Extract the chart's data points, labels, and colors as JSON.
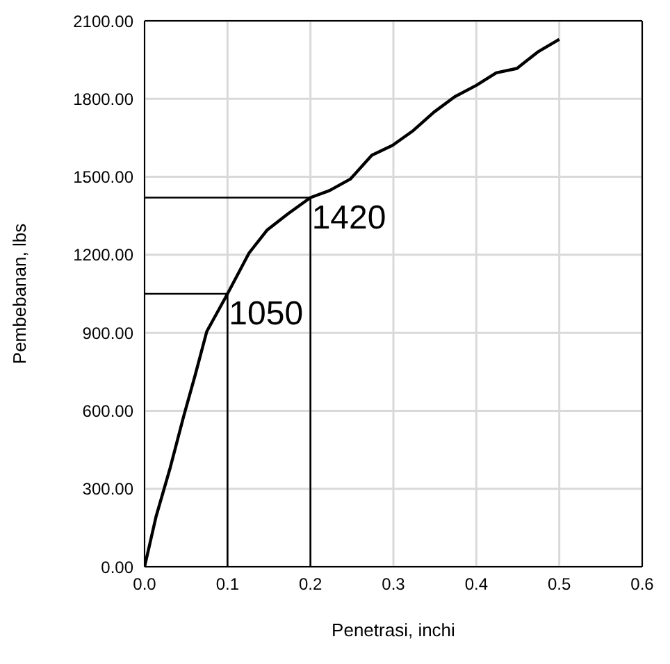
{
  "chart_data": {
    "type": "line",
    "xlabel": "Penetrasi, inchi",
    "ylabel": "Pembebanan, lbs",
    "series": [
      {
        "color": "#000000",
        "x": [
          0,
          0.014,
          0.031,
          0.047,
          0.061,
          0.075,
          0.1,
          0.126,
          0.148,
          0.173,
          0.2,
          0.223,
          0.248,
          0.274,
          0.299,
          0.324,
          0.349,
          0.374,
          0.4,
          0.424,
          0.449,
          0.474,
          0.5
        ],
        "values": [
          0,
          195,
          382,
          577,
          737,
          905,
          1050,
          1207,
          1296,
          1358,
          1420,
          1447,
          1491,
          1583,
          1621,
          1678,
          1749,
          1808,
          1852,
          1900,
          1917,
          1980,
          2029
        ]
      }
    ],
    "annotations": [
      {
        "text": "1050",
        "x": 0.1,
        "y": 1050
      },
      {
        "text": "1420",
        "x": 0.2,
        "y": 1420
      }
    ],
    "xlim": [
      0,
      0.6
    ],
    "xticks": [
      {
        "value": 0,
        "label": "0.0"
      },
      {
        "value": 0.1,
        "label": "0.1"
      },
      {
        "value": 0.2,
        "label": "0.2"
      },
      {
        "value": 0.3,
        "label": "0.3"
      },
      {
        "value": 0.4,
        "label": "0.4"
      },
      {
        "value": 0.5,
        "label": "0.5"
      },
      {
        "value": 0.6,
        "label": "0.6"
      }
    ],
    "ylim": [
      0,
      2100
    ],
    "yticks": [
      {
        "value": 0,
        "label": "0.00"
      },
      {
        "value": 300,
        "label": "300.00"
      },
      {
        "value": 600,
        "label": "600.00"
      },
      {
        "value": 900,
        "label": "900.00"
      },
      {
        "value": 1200,
        "label": "1200.00"
      },
      {
        "value": 1500,
        "label": "1500.00"
      },
      {
        "value": 1800,
        "label": "1800.00"
      },
      {
        "value": 2100,
        "label": "2100.00"
      }
    ],
    "grid": true,
    "marker": "none",
    "line_style": "solid",
    "legend": false
  }
}
